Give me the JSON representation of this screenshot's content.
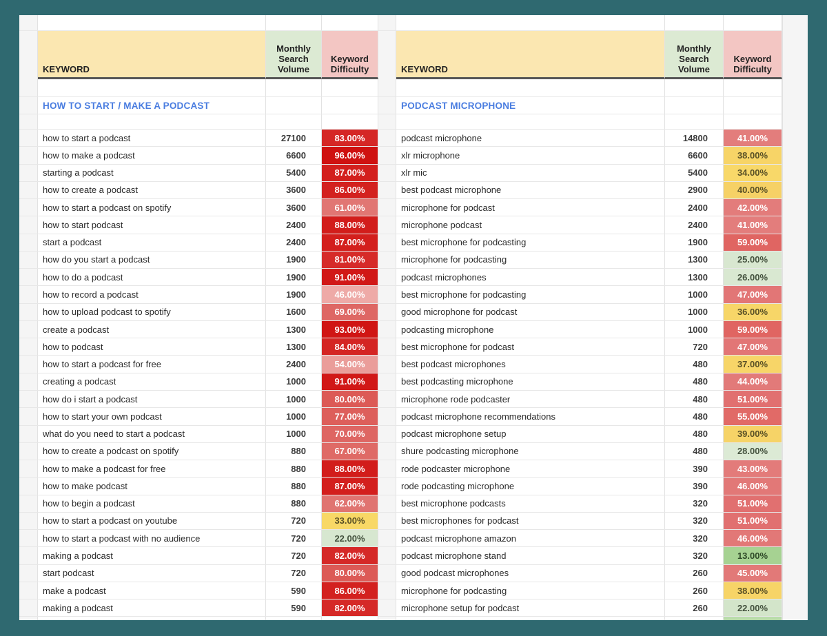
{
  "frame": {
    "background": "#2f6970",
    "sheet_background": "#ffffff"
  },
  "header_colors": {
    "keyword_bg": "#fbe7b1",
    "volume_bg": "#dcead3",
    "difficulty_bg": "#f3c6c3",
    "section_accent": "#4a7de0"
  },
  "columns": {
    "keyword": "KEYWORD",
    "volume": "Monthly\nSearch\nVolume",
    "difficulty": "Keyword\nDifficulty"
  },
  "panels": [
    {
      "section": "HOW TO START / MAKE A PODCAST",
      "footer_kd_bg": "",
      "rows": [
        {
          "k": "how to start a podcast",
          "v": "27100",
          "d": "83.00%",
          "bg": "#d52725",
          "fg": "#ffffff"
        },
        {
          "k": "how to make a podcast",
          "v": "6600",
          "d": "96.00%",
          "bg": "#cf1110",
          "fg": "#ffffff"
        },
        {
          "k": "starting a podcast",
          "v": "5400",
          "d": "87.00%",
          "bg": "#d31f1d",
          "fg": "#ffffff"
        },
        {
          "k": "how to create a podcast",
          "v": "3600",
          "d": "86.00%",
          "bg": "#d3211f",
          "fg": "#ffffff"
        },
        {
          "k": "how to start a podcast on spotify",
          "v": "3600",
          "d": "61.00%",
          "bg": "#e17673",
          "fg": "#ffffff"
        },
        {
          "k": "how to start podcast",
          "v": "2400",
          "d": "88.00%",
          "bg": "#d21d1b",
          "fg": "#ffffff"
        },
        {
          "k": "start a podcast",
          "v": "2400",
          "d": "87.00%",
          "bg": "#d31f1d",
          "fg": "#ffffff"
        },
        {
          "k": "how do you start a podcast",
          "v": "1900",
          "d": "81.00%",
          "bg": "#d62b29",
          "fg": "#ffffff"
        },
        {
          "k": "how to do a podcast",
          "v": "1900",
          "d": "91.00%",
          "bg": "#d11817",
          "fg": "#ffffff"
        },
        {
          "k": "how to record a podcast",
          "v": "1900",
          "d": "46.00%",
          "bg": "#eeaaa7",
          "fg": "#ffffff"
        },
        {
          "k": "how to upload podcast to spotify",
          "v": "1600",
          "d": "69.00%",
          "bg": "#de6764",
          "fg": "#ffffff"
        },
        {
          "k": "create a podcast",
          "v": "1300",
          "d": "93.00%",
          "bg": "#d01514",
          "fg": "#ffffff"
        },
        {
          "k": "how to podcast",
          "v": "1300",
          "d": "84.00%",
          "bg": "#d42523",
          "fg": "#ffffff"
        },
        {
          "k": "how to start a podcast for free",
          "v": "2400",
          "d": "54.00%",
          "bg": "#ea9d9a",
          "fg": "#ffffff"
        },
        {
          "k": "creating a podcast",
          "v": "1000",
          "d": "91.00%",
          "bg": "#d11817",
          "fg": "#ffffff"
        },
        {
          "k": "how do i start a podcast",
          "v": "1000",
          "d": "80.00%",
          "bg": "#dc5a56",
          "fg": "#ffffff"
        },
        {
          "k": "how to start your own podcast",
          "v": "1000",
          "d": "77.00%",
          "bg": "#dd5f5b",
          "fg": "#ffffff"
        },
        {
          "k": "what do you need to start a podcast",
          "v": "1000",
          "d": "70.00%",
          "bg": "#de6663",
          "fg": "#ffffff"
        },
        {
          "k": "how to create a podcast on spotify",
          "v": "880",
          "d": "67.00%",
          "bg": "#df6a66",
          "fg": "#ffffff"
        },
        {
          "k": "how to make a podcast for free",
          "v": "880",
          "d": "88.00%",
          "bg": "#d21d1b",
          "fg": "#ffffff"
        },
        {
          "k": "how to make podcast",
          "v": "880",
          "d": "87.00%",
          "bg": "#d31f1d",
          "fg": "#ffffff"
        },
        {
          "k": "how to begin a podcast",
          "v": "880",
          "d": "62.00%",
          "bg": "#e07471",
          "fg": "#ffffff"
        },
        {
          "k": "how to start a podcast on youtube",
          "v": "720",
          "d": "33.00%",
          "bg": "#f8d866",
          "fg": "#5a5126"
        },
        {
          "k": "how to start a podcast with no audience",
          "v": "720",
          "d": "22.00%",
          "bg": "#d7e7d0",
          "fg": "#44523e"
        },
        {
          "k": "making a podcast",
          "v": "720",
          "d": "82.00%",
          "bg": "#d52927",
          "fg": "#ffffff"
        },
        {
          "k": "start podcast",
          "v": "720",
          "d": "80.00%",
          "bg": "#dc5a56",
          "fg": "#ffffff"
        },
        {
          "k": "make a podcast",
          "v": "590",
          "d": "86.00%",
          "bg": "#d3211f",
          "fg": "#ffffff"
        },
        {
          "k": "making a podcast",
          "v": "590",
          "d": "82.00%",
          "bg": "#d52927",
          "fg": "#ffffff"
        }
      ]
    },
    {
      "section": "PODCAST MICROPHONE",
      "footer_kd_bg": "#b9dcaa",
      "rows": [
        {
          "k": "podcast microphone",
          "v": "14800",
          "d": "41.00%",
          "bg": "#e37d7c",
          "fg": "#ffffff"
        },
        {
          "k": "xlr microphone",
          "v": "6600",
          "d": "38.00%",
          "bg": "#f7d467",
          "fg": "#5a5126"
        },
        {
          "k": "xlr mic",
          "v": "5400",
          "d": "34.00%",
          "bg": "#f8d869",
          "fg": "#5a5126"
        },
        {
          "k": "best podcast microphone",
          "v": "2900",
          "d": "40.00%",
          "bg": "#f6d166",
          "fg": "#5a5126"
        },
        {
          "k": "microphone for podcast",
          "v": "2400",
          "d": "42.00%",
          "bg": "#e37c7b",
          "fg": "#ffffff"
        },
        {
          "k": "microphone podcast",
          "v": "2400",
          "d": "41.00%",
          "bg": "#e37d7c",
          "fg": "#ffffff"
        },
        {
          "k": "best microphone for podcasting",
          "v": "1900",
          "d": "59.00%",
          "bg": "#e06562",
          "fg": "#ffffff"
        },
        {
          "k": "microphone for podcasting",
          "v": "1300",
          "d": "25.00%",
          "bg": "#d8e7d0",
          "fg": "#44523e"
        },
        {
          "k": "podcast microphones",
          "v": "1300",
          "d": "26.00%",
          "bg": "#d9e8d1",
          "fg": "#44523e"
        },
        {
          "k": "best microphone for podcasting",
          "v": "1000",
          "d": "47.00%",
          "bg": "#e27676",
          "fg": "#ffffff"
        },
        {
          "k": "good microphone for podcast",
          "v": "1000",
          "d": "36.00%",
          "bg": "#f7d668",
          "fg": "#5a5126"
        },
        {
          "k": "podcasting microphone",
          "v": "1000",
          "d": "59.00%",
          "bg": "#e06562",
          "fg": "#ffffff"
        },
        {
          "k": "best microphone for podcast",
          "v": "720",
          "d": "47.00%",
          "bg": "#e27676",
          "fg": "#ffffff"
        },
        {
          "k": "best podcast microphones",
          "v": "480",
          "d": "37.00%",
          "bg": "#f7d568",
          "fg": "#5a5126"
        },
        {
          "k": "best podcasting microphone",
          "v": "480",
          "d": "44.00%",
          "bg": "#e27a79",
          "fg": "#ffffff"
        },
        {
          "k": "microphone rode podcaster",
          "v": "480",
          "d": "51.00%",
          "bg": "#e17070",
          "fg": "#ffffff"
        },
        {
          "k": "podcast microphone recommendations",
          "v": "480",
          "d": "55.00%",
          "bg": "#e16a67",
          "fg": "#ffffff"
        },
        {
          "k": "podcast microphone setup",
          "v": "480",
          "d": "39.00%",
          "bg": "#f6d367",
          "fg": "#5a5126"
        },
        {
          "k": "shure podcasting microphone",
          "v": "480",
          "d": "28.00%",
          "bg": "#dcead5",
          "fg": "#44523e"
        },
        {
          "k": "rode podcaster microphone",
          "v": "390",
          "d": "43.00%",
          "bg": "#e37b7a",
          "fg": "#ffffff"
        },
        {
          "k": "rode podcasting microphone",
          "v": "390",
          "d": "46.00%",
          "bg": "#e27877",
          "fg": "#ffffff"
        },
        {
          "k": "best microphone podcasts",
          "v": "320",
          "d": "51.00%",
          "bg": "#e17070",
          "fg": "#ffffff"
        },
        {
          "k": "best microphones for podcast",
          "v": "320",
          "d": "51.00%",
          "bg": "#e17070",
          "fg": "#ffffff"
        },
        {
          "k": "podcast microphone amazon",
          "v": "320",
          "d": "46.00%",
          "bg": "#e27877",
          "fg": "#ffffff"
        },
        {
          "k": "podcast microphone stand",
          "v": "320",
          "d": "13.00%",
          "bg": "#a6d292",
          "fg": "#2f4a28"
        },
        {
          "k": "good podcast microphones",
          "v": "260",
          "d": "45.00%",
          "bg": "#e27978",
          "fg": "#ffffff"
        },
        {
          "k": "microphone for podcasting",
          "v": "260",
          "d": "38.00%",
          "bg": "#f7d467",
          "fg": "#5a5126"
        },
        {
          "k": "microphone setup for podcast",
          "v": "260",
          "d": "22.00%",
          "bg": "#d3e5ca",
          "fg": "#44523e"
        }
      ]
    }
  ]
}
